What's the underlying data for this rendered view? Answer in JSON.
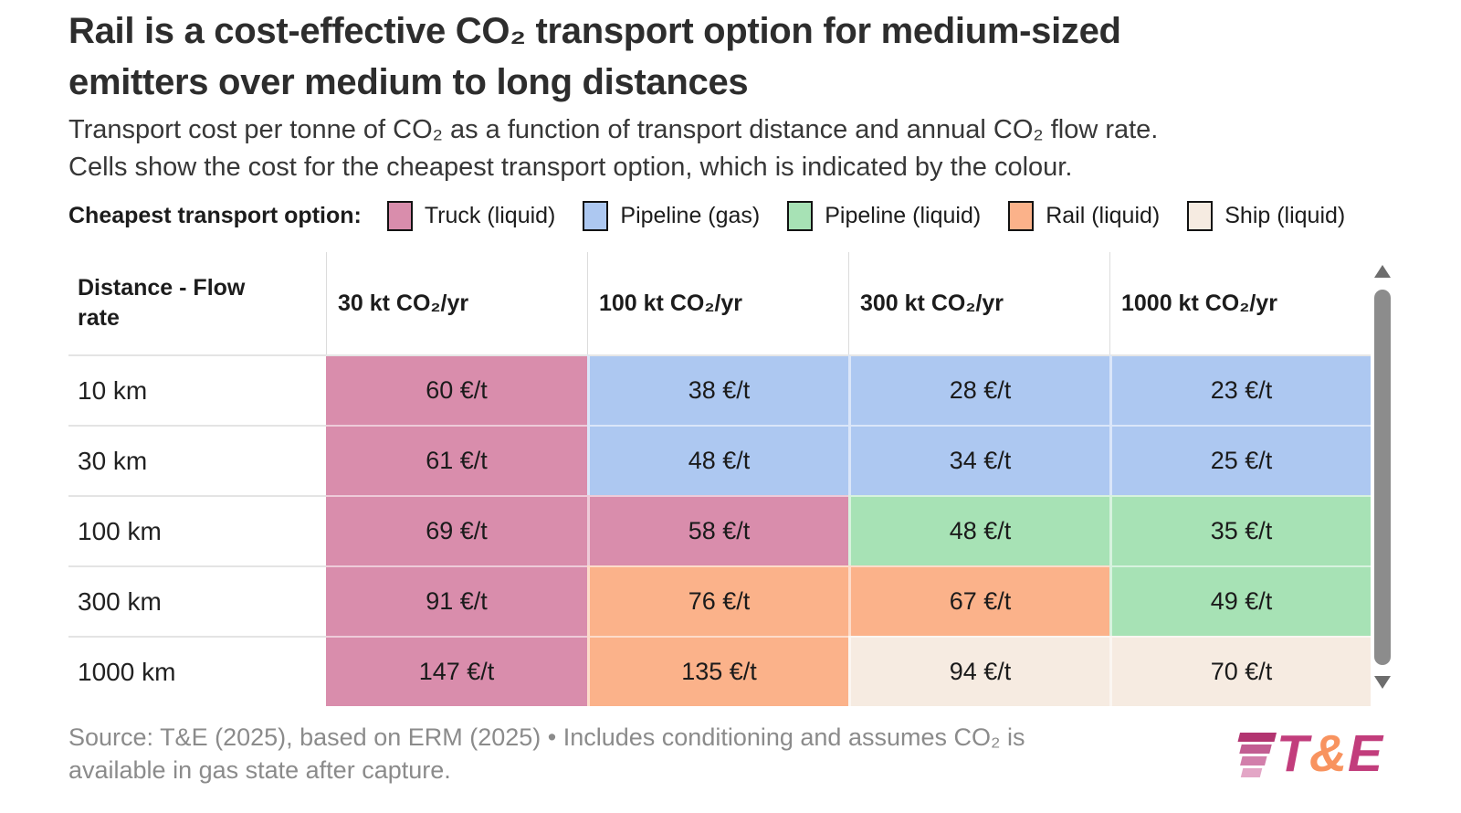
{
  "title": {
    "lines": [
      "Rail is a cost-effective CO₂ transport option for medium-sized",
      "emitters over medium to long distances"
    ]
  },
  "subtitle": {
    "lines": [
      "Transport cost per tonne of CO₂ as a function of transport distance and annual CO₂ flow rate.",
      "Cells show the cost for the cheapest transport option, which is indicated by the colour."
    ]
  },
  "legend": {
    "label": "Cheapest transport option:",
    "items": [
      {
        "name": "Truck (liquid)",
        "color": "#d98dac"
      },
      {
        "name": "Pipeline (gas)",
        "color": "#adc8f1"
      },
      {
        "name": "Pipeline (liquid)",
        "color": "#a7e2b5"
      },
      {
        "name": "Rail (liquid)",
        "color": "#fbb28a"
      },
      {
        "name": "Ship (liquid)",
        "color": "#f6ebe1"
      }
    ]
  },
  "chart_data": {
    "type": "heatmap",
    "corner_label": "Distance - Flow rate",
    "unit": "€/t",
    "columns": [
      "30 kt CO₂/yr",
      "100 kt CO₂/yr",
      "300 kt CO₂/yr",
      "1000 kt CO₂/yr"
    ],
    "rows": [
      {
        "label": "10 km",
        "cells": [
          {
            "value": 60,
            "label": "60 €/t",
            "option": "Truck (liquid)"
          },
          {
            "value": 38,
            "label": "38 €/t",
            "option": "Pipeline (gas)"
          },
          {
            "value": 28,
            "label": "28 €/t",
            "option": "Pipeline (gas)"
          },
          {
            "value": 23,
            "label": "23 €/t",
            "option": "Pipeline (gas)"
          }
        ]
      },
      {
        "label": "30 km",
        "cells": [
          {
            "value": 61,
            "label": "61 €/t",
            "option": "Truck (liquid)"
          },
          {
            "value": 48,
            "label": "48 €/t",
            "option": "Pipeline (gas)"
          },
          {
            "value": 34,
            "label": "34 €/t",
            "option": "Pipeline (gas)"
          },
          {
            "value": 25,
            "label": "25 €/t",
            "option": "Pipeline (gas)"
          }
        ]
      },
      {
        "label": "100 km",
        "cells": [
          {
            "value": 69,
            "label": "69 €/t",
            "option": "Truck (liquid)"
          },
          {
            "value": 58,
            "label": "58 €/t",
            "option": "Truck (liquid)"
          },
          {
            "value": 48,
            "label": "48 €/t",
            "option": "Pipeline (liquid)"
          },
          {
            "value": 35,
            "label": "35 €/t",
            "option": "Pipeline (liquid)"
          }
        ]
      },
      {
        "label": "300 km",
        "cells": [
          {
            "value": 91,
            "label": "91 €/t",
            "option": "Truck (liquid)"
          },
          {
            "value": 76,
            "label": "76 €/t",
            "option": "Rail (liquid)"
          },
          {
            "value": 67,
            "label": "67 €/t",
            "option": "Rail (liquid)"
          },
          {
            "value": 49,
            "label": "49 €/t",
            "option": "Pipeline (liquid)"
          }
        ]
      },
      {
        "label": "1000 km",
        "cells": [
          {
            "value": 147,
            "label": "147 €/t",
            "option": "Truck (liquid)"
          },
          {
            "value": 135,
            "label": "135 €/t",
            "option": "Rail (liquid)"
          },
          {
            "value": 94,
            "label": "94 €/t",
            "option": "Ship (liquid)"
          },
          {
            "value": 70,
            "label": "70 €/t",
            "option": "Ship (liquid)"
          }
        ]
      }
    ]
  },
  "source": {
    "lines": [
      "Source: T&E (2025), based on ERM (2025) • Includes conditioning and assumes CO₂ is",
      "available in gas state after capture."
    ]
  },
  "logo": {
    "t": "T",
    "amp": "&",
    "e": "E",
    "magenta": "#c23d7c",
    "orange": "#f8935f"
  }
}
